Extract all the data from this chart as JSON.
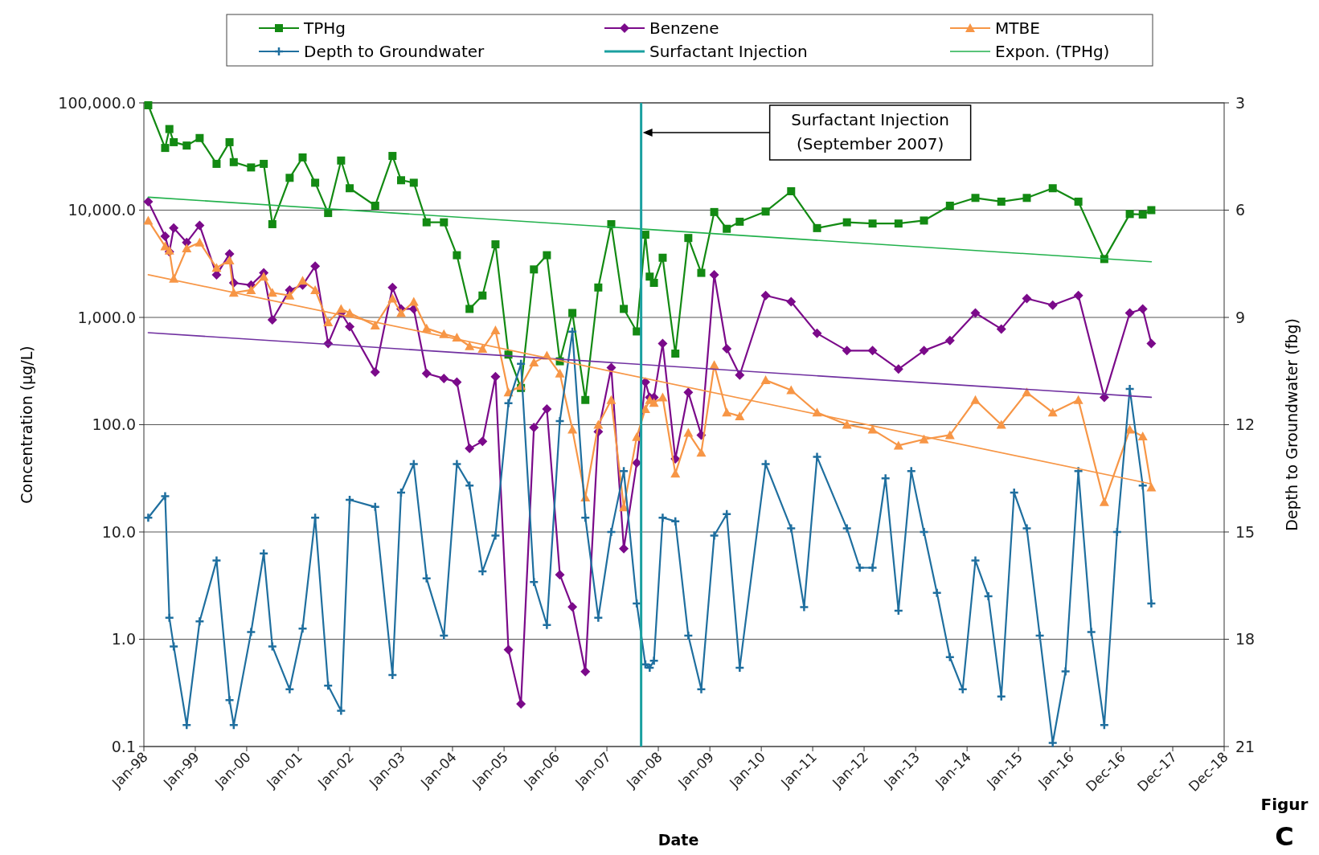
{
  "chart_data": {
    "type": "line",
    "xlabel": "Date",
    "ylabel": "Concentration (µg/L)",
    "y2label": "Depth to Groundwater (fbg)",
    "legend": "top",
    "grid": "y",
    "log": "y",
    "xlim": [
      "1998-01-01",
      "2018-12-31"
    ],
    "xticks": [
      {
        "value": "1998-01-01",
        "label": "Jan-98"
      },
      {
        "value": "1999-01-01",
        "label": "Jan-99"
      },
      {
        "value": "2000-01-01",
        "label": "Jan-00"
      },
      {
        "value": "2001-01-01",
        "label": "Jan-01"
      },
      {
        "value": "2002-01-01",
        "label": "Jan-02"
      },
      {
        "value": "2003-01-01",
        "label": "Jan-03"
      },
      {
        "value": "2004-01-01",
        "label": "Jan-04"
      },
      {
        "value": "2005-01-01",
        "label": "Jan-05"
      },
      {
        "value": "2006-01-01",
        "label": "Jan-06"
      },
      {
        "value": "2007-01-01",
        "label": "Jan-07"
      },
      {
        "value": "2008-01-01",
        "label": "Jan-08"
      },
      {
        "value": "2009-01-01",
        "label": "Jan-09"
      },
      {
        "value": "2010-01-01",
        "label": "Jan-10"
      },
      {
        "value": "2011-01-01",
        "label": "Jan-11"
      },
      {
        "value": "2012-01-01",
        "label": "Jan-12"
      },
      {
        "value": "2013-01-01",
        "label": "Jan-13"
      },
      {
        "value": "2014-01-01",
        "label": "Jan-14"
      },
      {
        "value": "2015-01-01",
        "label": "Jan-15"
      },
      {
        "value": "2016-01-01",
        "label": "Jan-16"
      },
      {
        "value": "2016-12-31",
        "label": "Dec-16"
      },
      {
        "value": "2017-12-31",
        "label": "Dec-17"
      },
      {
        "value": "2018-12-31",
        "label": "Dec-18"
      }
    ],
    "ylim": [
      0.1,
      100000
    ],
    "yticks": [
      {
        "value": 0.1,
        "label": "0.1"
      },
      {
        "value": 1,
        "label": "1.0"
      },
      {
        "value": 10,
        "label": "10.0"
      },
      {
        "value": 100,
        "label": "100.0"
      },
      {
        "value": 1000,
        "label": "1,000.0"
      },
      {
        "value": 10000,
        "label": "10,000.0"
      },
      {
        "value": 100000,
        "label": "100,000.0"
      }
    ],
    "y2lim": [
      21,
      3
    ],
    "y2ticks": [
      3,
      6,
      9,
      12,
      15,
      18,
      21
    ],
    "x": [
      "1998-02",
      "1998-06",
      "1998-07",
      "1998-08",
      "1998-11",
      "1999-02",
      "1999-06",
      "1999-09",
      "1999-10",
      "2000-02",
      "2000-05",
      "2000-07",
      "2000-11",
      "2001-02",
      "2001-05",
      "2001-08",
      "2001-11",
      "2002-01",
      "2002-07",
      "2002-11",
      "2003-01",
      "2003-04",
      "2003-07",
      "2003-11",
      "2004-02",
      "2004-05",
      "2004-08",
      "2004-11",
      "2005-02",
      "2005-05",
      "2005-08",
      "2005-11",
      "2006-02",
      "2006-05",
      "2006-08",
      "2006-11",
      "2007-02",
      "2007-05",
      "2007-08",
      "2007-10",
      "2007-11",
      "2007-12",
      "2008-02",
      "2008-05",
      "2008-08",
      "2008-11",
      "2009-02",
      "2009-05",
      "2009-08",
      "2010-02",
      "2010-08",
      "2011-02",
      "2011-09",
      "2012-03",
      "2012-09",
      "2013-03",
      "2013-09",
      "2014-03",
      "2014-09",
      "2015-03",
      "2015-09",
      "2016-03",
      "2016-09",
      "2017-03",
      "2017-06",
      "2017-08"
    ],
    "series": [
      {
        "name": "TPHg",
        "color": "#138a13",
        "marker": "square",
        "values": [
          95000,
          38000,
          57000,
          43000,
          40000,
          47000,
          27000,
          43000,
          28000,
          25000,
          27000,
          7400,
          20000,
          31000,
          18000,
          9400,
          29000,
          16000,
          11000,
          32000,
          19000,
          18000,
          7700,
          7700,
          3800,
          1200,
          1600,
          4800,
          450,
          220,
          2800,
          3800,
          390,
          1100,
          170,
          1900,
          7400,
          1200,
          740,
          5900,
          2400,
          2100,
          3600,
          460,
          5500,
          2600,
          9600,
          6700,
          7800,
          9700,
          15000,
          6800,
          7700,
          7500,
          7500,
          8000,
          11000,
          13000,
          12000,
          13000,
          16000,
          12000,
          3500,
          9200,
          9100,
          10000
        ]
      },
      {
        "name": "Benzene",
        "color": "#7b0a8a",
        "marker": "diamond",
        "values": [
          12000,
          5700,
          4100,
          6800,
          5000,
          7200,
          2500,
          3900,
          2100,
          2000,
          2600,
          950,
          1800,
          2000,
          3000,
          570,
          1100,
          820,
          310,
          1900,
          1200,
          1200,
          300,
          270,
          250,
          60,
          70,
          280,
          0.8,
          0.25,
          94,
          140,
          4,
          2,
          0.5,
          86,
          340,
          7,
          44,
          250,
          180,
          180,
          570,
          48,
          200,
          80,
          2500,
          510,
          290,
          1600,
          1400,
          710,
          490,
          490,
          330,
          490,
          610,
          1100,
          780,
          1500,
          1300,
          1600,
          180,
          1100,
          1200,
          570
        ]
      },
      {
        "name": "MTBE",
        "color": "#f79646",
        "marker": "triangle",
        "values": [
          8000,
          4600,
          4200,
          2300,
          4400,
          5000,
          2900,
          3400,
          1700,
          1800,
          2400,
          1700,
          1600,
          2200,
          1800,
          900,
          1200,
          1100,
          840,
          1500,
          1100,
          1400,
          790,
          700,
          650,
          540,
          510,
          760,
          200,
          230,
          380,
          440,
          300,
          90,
          21,
          100,
          170,
          17,
          77,
          140,
          170,
          160,
          180,
          35,
          84,
          55,
          360,
          130,
          120,
          260,
          210,
          130,
          100,
          90,
          64,
          73,
          80,
          170,
          100,
          200,
          130,
          170,
          19,
          90,
          78,
          26
        ]
      },
      {
        "name": "Depth to Groundwater",
        "color": "#1f6f9f",
        "marker": "cross",
        "axis": "y2",
        "x": [
          "1998-02",
          "1998-06",
          "1998-07",
          "1998-08",
          "1998-11",
          "1999-02",
          "1999-06",
          "1999-09",
          "1999-10",
          "2000-02",
          "2000-05",
          "2000-07",
          "2000-11",
          "2001-02",
          "2001-05",
          "2001-08",
          "2001-11",
          "2002-01",
          "2002-07",
          "2002-11",
          "2003-01",
          "2003-04",
          "2003-07",
          "2003-11",
          "2004-02",
          "2004-05",
          "2004-08",
          "2004-11",
          "2005-02",
          "2005-05",
          "2005-08",
          "2005-11",
          "2006-02",
          "2006-05",
          "2006-08",
          "2006-11",
          "2007-02",
          "2007-05",
          "2007-08",
          "2007-10",
          "2007-11",
          "2007-12",
          "2008-02",
          "2008-05",
          "2008-08",
          "2008-11",
          "2009-02",
          "2009-05",
          "2009-08",
          "2010-02",
          "2010-08",
          "2010-11",
          "2011-02",
          "2011-09",
          "2011-12",
          "2012-03",
          "2012-06",
          "2012-09",
          "2012-12",
          "2013-03",
          "2013-06",
          "2013-09",
          "2013-12",
          "2014-03",
          "2014-06",
          "2014-09",
          "2014-12",
          "2015-03",
          "2015-06",
          "2015-09",
          "2015-12",
          "2016-03",
          "2016-06",
          "2016-09",
          "2016-12",
          "2017-03",
          "2017-06",
          "2017-08"
        ],
        "values": [
          14.6,
          14.0,
          17.4,
          18.2,
          20.4,
          17.5,
          15.8,
          19.7,
          20.4,
          17.8,
          15.6,
          18.2,
          19.4,
          17.7,
          14.6,
          19.3,
          20.0,
          14.1,
          14.3,
          19.0,
          13.9,
          13.1,
          16.3,
          17.9,
          13.1,
          13.7,
          16.1,
          15.1,
          11.4,
          10.3,
          16.4,
          17.6,
          11.9,
          9.4,
          14.6,
          17.4,
          15.0,
          13.3,
          17.0,
          18.7,
          18.8,
          18.6,
          14.6,
          14.7,
          17.9,
          19.4,
          15.1,
          14.5,
          18.8,
          13.1,
          14.9,
          17.1,
          12.9,
          14.9,
          16.0,
          16.0,
          13.5,
          17.2,
          13.3,
          15.0,
          16.7,
          18.5,
          19.4,
          15.8,
          16.8,
          19.6,
          13.9,
          14.9,
          17.9,
          20.9,
          18.9,
          13.3,
          17.8,
          20.4,
          15.0,
          11.0,
          13.7,
          17.0
        ]
      },
      {
        "name": "Expon. (TPHg)",
        "color": "#22b14c",
        "marker": "none",
        "x": [
          "1998-02",
          "2017-08"
        ],
        "values": [
          13200,
          3300
        ]
      },
      {
        "color": "#7030a0",
        "marker": "none",
        "x": [
          "1998-02",
          "2017-08"
        ],
        "values": [
          720,
          180
        ]
      },
      {
        "color": "#f79646",
        "marker": "none",
        "x": [
          "1998-02",
          "2017-08"
        ],
        "values": [
          2500,
          28
        ]
      }
    ],
    "ref_lines": [
      {
        "axis": "x",
        "value": "2007-09",
        "label": "Surfactant Injection",
        "color": "#1aa0a0"
      }
    ],
    "annotations": [
      "Surfactant Injection\n(September 2007)",
      "Figur",
      "C"
    ]
  }
}
